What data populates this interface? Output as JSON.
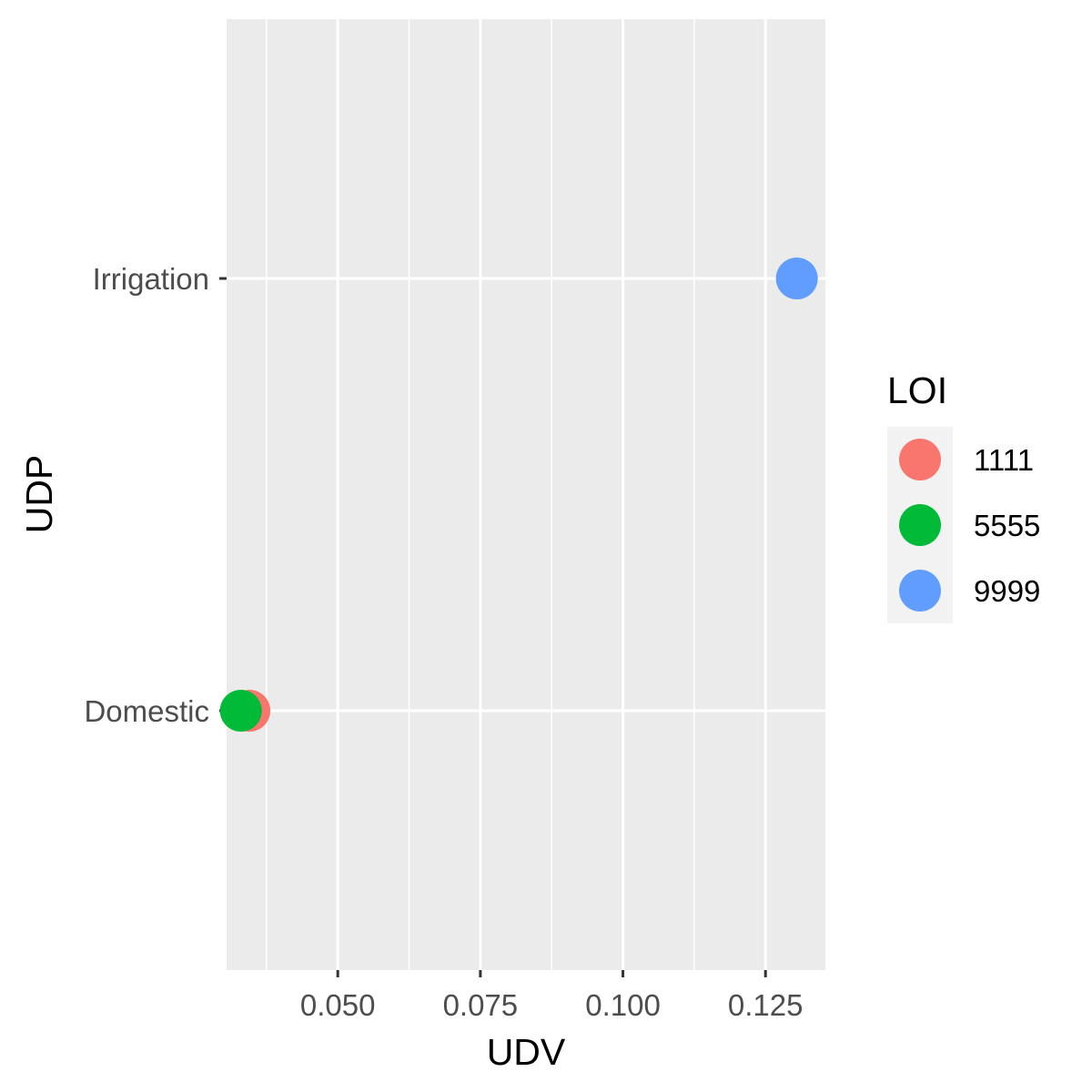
{
  "chart_data": {
    "type": "scatter",
    "xlabel": "UDV",
    "ylabel": "UDP",
    "x_ticks": [
      "0.050",
      "0.075",
      "0.100",
      "0.125"
    ],
    "x_tick_values": [
      0.05,
      0.075,
      0.1,
      0.125
    ],
    "xlim": [
      0.0305,
      0.1355
    ],
    "categories": [
      "Domestic",
      "Irrigation"
    ],
    "legend": {
      "title": "LOI",
      "placement": "right"
    },
    "series": [
      {
        "name": "1111",
        "color": "#F8766D",
        "points": [
          {
            "x": 0.0345,
            "y": "Domestic"
          }
        ]
      },
      {
        "name": "5555",
        "color": "#00BA38",
        "points": [
          {
            "x": 0.033,
            "y": "Domestic"
          }
        ]
      },
      {
        "name": "9999",
        "color": "#619CFF",
        "points": [
          {
            "x": 0.1305,
            "y": "Irrigation"
          }
        ]
      }
    ],
    "grid": true,
    "panel_background": "#EBEBEB"
  }
}
